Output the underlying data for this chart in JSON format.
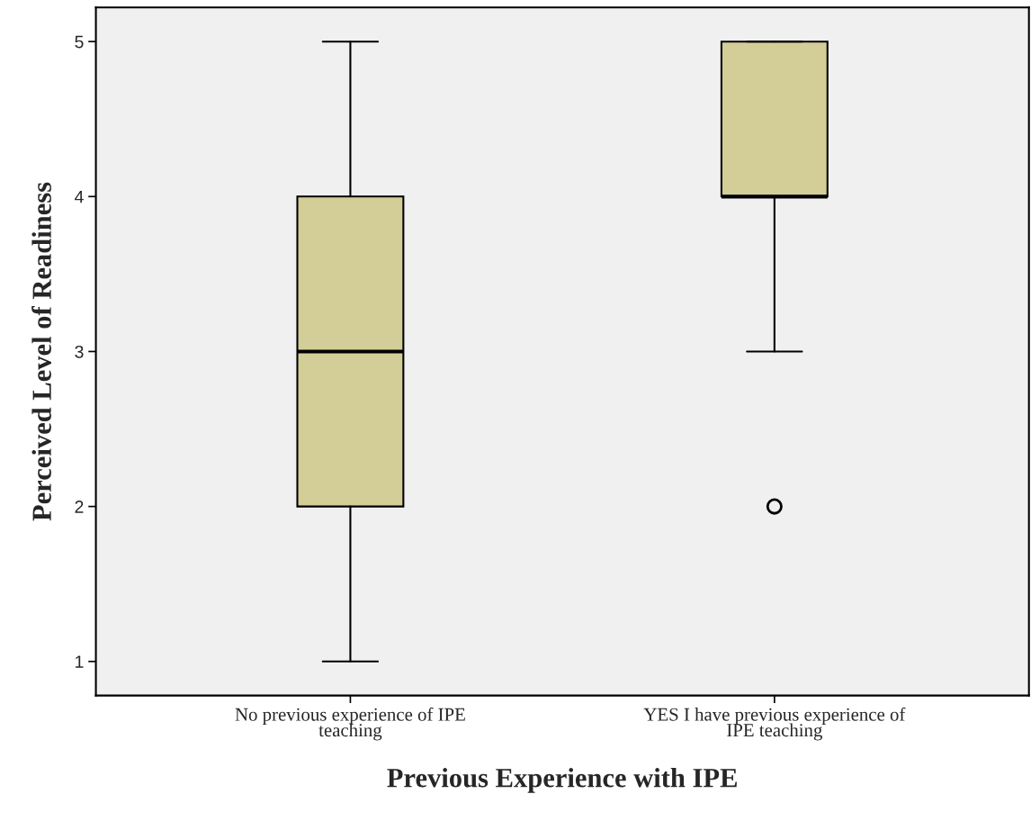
{
  "chart_data": {
    "type": "box",
    "xlabel": "Previous Experience with IPE",
    "ylabel": "Perceived Level of Readiness",
    "categories": [
      "No previous experience of IPE\nteaching",
      "YES I have previous experience of\nIPE teaching"
    ],
    "boxes": [
      {
        "low": 1,
        "q1": 2,
        "median": 3,
        "q3": 4,
        "high": 5
      },
      {
        "low": 3,
        "q1": 4,
        "median": 4,
        "q3": 5,
        "high": 5,
        "outliers": [
          2
        ]
      }
    ],
    "color": "#d3ce97",
    "ylim": [
      0.78,
      5.22
    ],
    "yticks": [
      1,
      2,
      3,
      4,
      5
    ],
    "grid": false,
    "legend": false
  }
}
